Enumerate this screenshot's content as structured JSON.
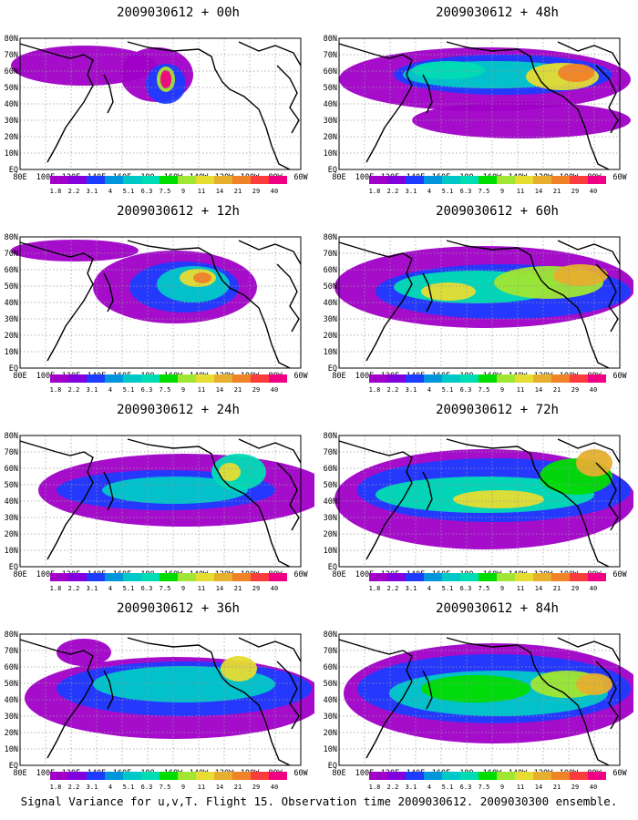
{
  "caption": "Signal Variance for u,v,T. Flight 15. Observation time 2009030612. 2009030300 ensemble.",
  "x_ticks": [
    "80E",
    "100E",
    "120E",
    "140E",
    "160E",
    "180",
    "160W",
    "140W",
    "120W",
    "100W",
    "80W",
    "60W"
  ],
  "y_ticks": [
    "80N",
    "70N",
    "60N",
    "50N",
    "40N",
    "30N",
    "20N",
    "10N",
    "EQ"
  ],
  "colorbar": {
    "labels": [
      "1.8",
      "2.2",
      "3.1",
      "4",
      "5.1",
      "6.3",
      "7.5",
      "9",
      "11",
      "14",
      "21",
      "29",
      "40"
    ],
    "colors": [
      "#a000c8",
      "#8200dc",
      "#1e3cff",
      "#0096dc",
      "#00c8c8",
      "#00dcb4",
      "#00dc00",
      "#a0e632",
      "#e6dc32",
      "#e6af2d",
      "#f08228",
      "#fa3c3c",
      "#f00082"
    ]
  },
  "panels": [
    {
      "title": "2009030612 + 00h",
      "lead_hours": 0
    },
    {
      "title": "2009030612 + 48h",
      "lead_hours": 48
    },
    {
      "title": "2009030612 + 12h",
      "lead_hours": 12
    },
    {
      "title": "2009030612 + 60h",
      "lead_hours": 60
    },
    {
      "title": "2009030612 + 24h",
      "lead_hours": 24
    },
    {
      "title": "2009030612 + 72h",
      "lead_hours": 72
    },
    {
      "title": "2009030612 + 36h",
      "lead_hours": 36
    },
    {
      "title": "2009030612 + 84h",
      "lead_hours": 84
    }
  ]
}
